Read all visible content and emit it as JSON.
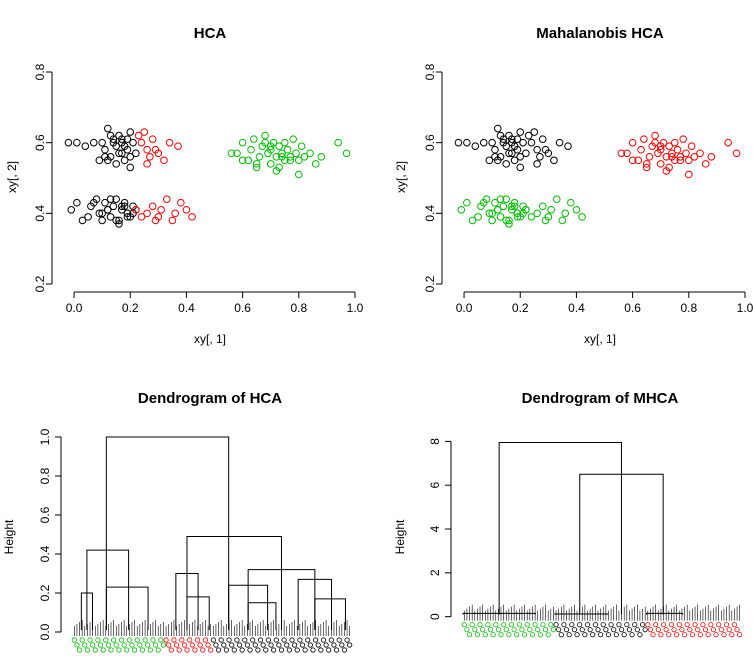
{
  "chart_data": [
    {
      "type": "scatter",
      "title": "HCA",
      "xlabel": "xy[, 1]",
      "ylabel": "xy[, 2]",
      "xlim": [
        -0.05,
        1.0
      ],
      "ylim": [
        0.2,
        0.8
      ],
      "xticks": [
        "0.0",
        "0.2",
        "0.4",
        "0.6",
        "0.8",
        "1.0"
      ],
      "yticks": [
        "0.2",
        "0.4",
        "0.6",
        "0.8"
      ],
      "series": [
        {
          "color": "#000000",
          "x": [
            -0.02,
            0.01,
            0.04,
            0.07,
            0.09,
            0.1,
            0.11,
            0.12,
            0.13,
            0.14,
            0.15,
            0.15,
            0.16,
            0.17,
            0.17,
            0.18,
            0.19,
            0.19,
            0.2,
            0.2,
            0.21,
            0.22,
            0.13,
            0.16,
            0.18,
            0.12,
            0.14,
            0.2,
            0.17,
            0.11,
            -0.01,
            0.01,
            0.03,
            0.05,
            0.06,
            0.08,
            0.09,
            0.1,
            0.11,
            0.12,
            0.13,
            0.14,
            0.15,
            0.16,
            0.17,
            0.18,
            0.19,
            0.2,
            0.21,
            0.22,
            0.1,
            0.13,
            0.15,
            0.17,
            0.19,
            0.07,
            0.21,
            0.12,
            0.16,
            0.18
          ],
          "y": [
            0.6,
            0.6,
            0.59,
            0.6,
            0.55,
            0.6,
            0.58,
            0.64,
            0.56,
            0.61,
            0.59,
            0.54,
            0.62,
            0.57,
            0.6,
            0.55,
            0.61,
            0.58,
            0.56,
            0.63,
            0.6,
            0.57,
            0.62,
            0.57,
            0.59,
            0.55,
            0.6,
            0.53,
            0.61,
            0.56,
            0.41,
            0.43,
            0.38,
            0.39,
            0.42,
            0.44,
            0.4,
            0.38,
            0.43,
            0.41,
            0.39,
            0.42,
            0.44,
            0.38,
            0.41,
            0.43,
            0.4,
            0.39,
            0.42,
            0.41,
            0.4,
            0.44,
            0.38,
            0.42,
            0.39,
            0.43,
            0.4,
            0.41,
            0.37,
            0.42
          ]
        },
        {
          "color": "#ff0000",
          "x": [
            0.23,
            0.24,
            0.25,
            0.26,
            0.27,
            0.28,
            0.3,
            0.32,
            0.34,
            0.37,
            0.26,
            0.29,
            0.22,
            0.24,
            0.26,
            0.28,
            0.3,
            0.31,
            0.33,
            0.35,
            0.38,
            0.4,
            0.42,
            0.29,
            0.36
          ],
          "y": [
            0.62,
            0.6,
            0.63,
            0.58,
            0.56,
            0.61,
            0.57,
            0.55,
            0.6,
            0.59,
            0.54,
            0.58,
            0.41,
            0.39,
            0.4,
            0.42,
            0.39,
            0.41,
            0.44,
            0.38,
            0.43,
            0.41,
            0.39,
            0.38,
            0.4
          ]
        },
        {
          "color": "#00c000",
          "x": [
            0.56,
            0.58,
            0.6,
            0.62,
            0.63,
            0.64,
            0.65,
            0.66,
            0.67,
            0.68,
            0.69,
            0.7,
            0.7,
            0.71,
            0.72,
            0.73,
            0.73,
            0.74,
            0.75,
            0.75,
            0.76,
            0.77,
            0.78,
            0.79,
            0.8,
            0.81,
            0.82,
            0.84,
            0.86,
            0.88,
            0.94,
            0.97,
            0.6,
            0.65,
            0.68,
            0.72,
            0.77,
            0.8,
            0.7,
            0.74
          ],
          "y": [
            0.57,
            0.57,
            0.6,
            0.55,
            0.58,
            0.61,
            0.54,
            0.56,
            0.59,
            0.6,
            0.57,
            0.54,
            0.58,
            0.6,
            0.56,
            0.59,
            0.53,
            0.57,
            0.6,
            0.55,
            0.58,
            0.56,
            0.61,
            0.57,
            0.55,
            0.59,
            0.56,
            0.57,
            0.54,
            0.56,
            0.6,
            0.57,
            0.55,
            0.53,
            0.62,
            0.52,
            0.55,
            0.51,
            0.59,
            0.56
          ]
        }
      ]
    },
    {
      "type": "scatter",
      "title": "Mahalanobis HCA",
      "xlabel": "xy[, 1]",
      "ylabel": "xy[, 2]",
      "xlim": [
        -0.05,
        1.0
      ],
      "ylim": [
        0.2,
        0.8
      ],
      "xticks": [
        "0.0",
        "0.2",
        "0.4",
        "0.6",
        "0.8",
        "1.0"
      ],
      "yticks": [
        "0.2",
        "0.4",
        "0.6",
        "0.8"
      ],
      "series": [
        {
          "color": "#000000",
          "x": [
            -0.02,
            0.01,
            0.04,
            0.07,
            0.09,
            0.1,
            0.11,
            0.12,
            0.13,
            0.14,
            0.15,
            0.15,
            0.16,
            0.17,
            0.17,
            0.18,
            0.19,
            0.19,
            0.2,
            0.2,
            0.21,
            0.22,
            0.13,
            0.16,
            0.18,
            0.12,
            0.14,
            0.2,
            0.17,
            0.11,
            0.23,
            0.24,
            0.25,
            0.26,
            0.27,
            0.28,
            0.3,
            0.32,
            0.34,
            0.37,
            0.26,
            0.29
          ],
          "y": [
            0.6,
            0.6,
            0.59,
            0.6,
            0.55,
            0.6,
            0.58,
            0.64,
            0.56,
            0.61,
            0.59,
            0.54,
            0.62,
            0.57,
            0.6,
            0.55,
            0.61,
            0.58,
            0.56,
            0.63,
            0.6,
            0.57,
            0.62,
            0.57,
            0.59,
            0.55,
            0.6,
            0.53,
            0.61,
            0.56,
            0.62,
            0.6,
            0.63,
            0.58,
            0.56,
            0.61,
            0.57,
            0.55,
            0.6,
            0.59,
            0.54,
            0.58
          ]
        },
        {
          "color": "#00c000",
          "x": [
            -0.01,
            0.01,
            0.03,
            0.05,
            0.06,
            0.08,
            0.09,
            0.1,
            0.11,
            0.12,
            0.13,
            0.14,
            0.15,
            0.16,
            0.17,
            0.18,
            0.19,
            0.2,
            0.21,
            0.22,
            0.1,
            0.13,
            0.15,
            0.17,
            0.19,
            0.07,
            0.21,
            0.12,
            0.16,
            0.18,
            0.22,
            0.24,
            0.26,
            0.28,
            0.3,
            0.31,
            0.33,
            0.35,
            0.38,
            0.4,
            0.42,
            0.29,
            0.36
          ],
          "y": [
            0.41,
            0.43,
            0.38,
            0.39,
            0.42,
            0.44,
            0.4,
            0.38,
            0.43,
            0.41,
            0.39,
            0.42,
            0.44,
            0.38,
            0.41,
            0.43,
            0.4,
            0.39,
            0.42,
            0.41,
            0.4,
            0.44,
            0.38,
            0.42,
            0.39,
            0.43,
            0.4,
            0.41,
            0.37,
            0.42,
            0.41,
            0.39,
            0.4,
            0.42,
            0.39,
            0.41,
            0.44,
            0.38,
            0.43,
            0.41,
            0.39,
            0.38,
            0.4
          ]
        },
        {
          "color": "#ff0000",
          "x": [
            0.56,
            0.58,
            0.6,
            0.62,
            0.63,
            0.64,
            0.65,
            0.66,
            0.67,
            0.68,
            0.69,
            0.7,
            0.7,
            0.71,
            0.72,
            0.73,
            0.73,
            0.74,
            0.75,
            0.75,
            0.76,
            0.77,
            0.78,
            0.79,
            0.8,
            0.81,
            0.82,
            0.84,
            0.86,
            0.88,
            0.94,
            0.97,
            0.6,
            0.65,
            0.68,
            0.72,
            0.77,
            0.8,
            0.7,
            0.74
          ],
          "y": [
            0.57,
            0.57,
            0.6,
            0.55,
            0.58,
            0.61,
            0.54,
            0.56,
            0.59,
            0.6,
            0.57,
            0.54,
            0.58,
            0.6,
            0.56,
            0.59,
            0.53,
            0.57,
            0.6,
            0.55,
            0.58,
            0.56,
            0.61,
            0.57,
            0.55,
            0.59,
            0.56,
            0.57,
            0.54,
            0.56,
            0.6,
            0.57,
            0.55,
            0.53,
            0.62,
            0.52,
            0.55,
            0.51,
            0.59,
            0.56
          ]
        }
      ]
    },
    {
      "type": "dendrogram",
      "title": "Dendrogram of HCA",
      "ylabel": "Height",
      "ylim": [
        0,
        1.0
      ],
      "yticks": [
        "0.0",
        "0.2",
        "0.4",
        "0.6",
        "0.8",
        "1.0"
      ],
      "merges": [
        {
          "h": 1.0,
          "xl": 0.12,
          "xr": 0.56
        },
        {
          "h": 0.42,
          "xl": 0.05,
          "xr": 0.2
        },
        {
          "h": 0.49,
          "xl": 0.41,
          "xr": 0.75
        },
        {
          "h": 0.23,
          "xl": 0.12,
          "xr": 0.27
        },
        {
          "h": 0.2,
          "xl": 0.03,
          "xr": 0.07
        },
        {
          "h": 0.3,
          "xl": 0.37,
          "xr": 0.45
        },
        {
          "h": 0.32,
          "xl": 0.63,
          "xr": 0.87
        },
        {
          "h": 0.24,
          "xl": 0.56,
          "xr": 0.7
        },
        {
          "h": 0.27,
          "xl": 0.81,
          "xr": 0.93
        },
        {
          "h": 0.17,
          "xl": 0.87,
          "xr": 0.98
        },
        {
          "h": 0.18,
          "xl": 0.41,
          "xr": 0.49
        },
        {
          "h": 0.15,
          "xl": 0.63,
          "xr": 0.73
        }
      ],
      "leaf_groups": [
        {
          "color": "#00c000",
          "from": 0.0,
          "to": 0.33
        },
        {
          "color": "#ff0000",
          "from": 0.33,
          "to": 0.5
        },
        {
          "color": "#000000",
          "from": 0.5,
          "to": 1.0
        }
      ]
    },
    {
      "type": "dendrogram",
      "title": "Dendrogram of MHCA",
      "ylabel": "Height",
      "ylim": [
        -0.7,
        8.2
      ],
      "yticks": [
        "0",
        "2",
        "4",
        "6",
        "8"
      ],
      "ytick_values": [
        0,
        2,
        4,
        6,
        8
      ],
      "merges": [
        {
          "h": 7.95,
          "xl": 0.13,
          "xr": 0.57
        },
        {
          "h": 6.5,
          "xl": 0.42,
          "xr": 0.72
        },
        {
          "h": 0.15,
          "xl": 0.0,
          "xr": 0.26
        },
        {
          "h": 0.12,
          "xl": 0.33,
          "xr": 0.52
        },
        {
          "h": 0.15,
          "xl": 0.66,
          "xr": 0.79
        }
      ],
      "leaf_groups": [
        {
          "color": "#00c000",
          "from": 0.0,
          "to": 0.33
        },
        {
          "color": "#000000",
          "from": 0.33,
          "to": 0.66
        },
        {
          "color": "#ff0000",
          "from": 0.66,
          "to": 1.0
        }
      ]
    }
  ]
}
